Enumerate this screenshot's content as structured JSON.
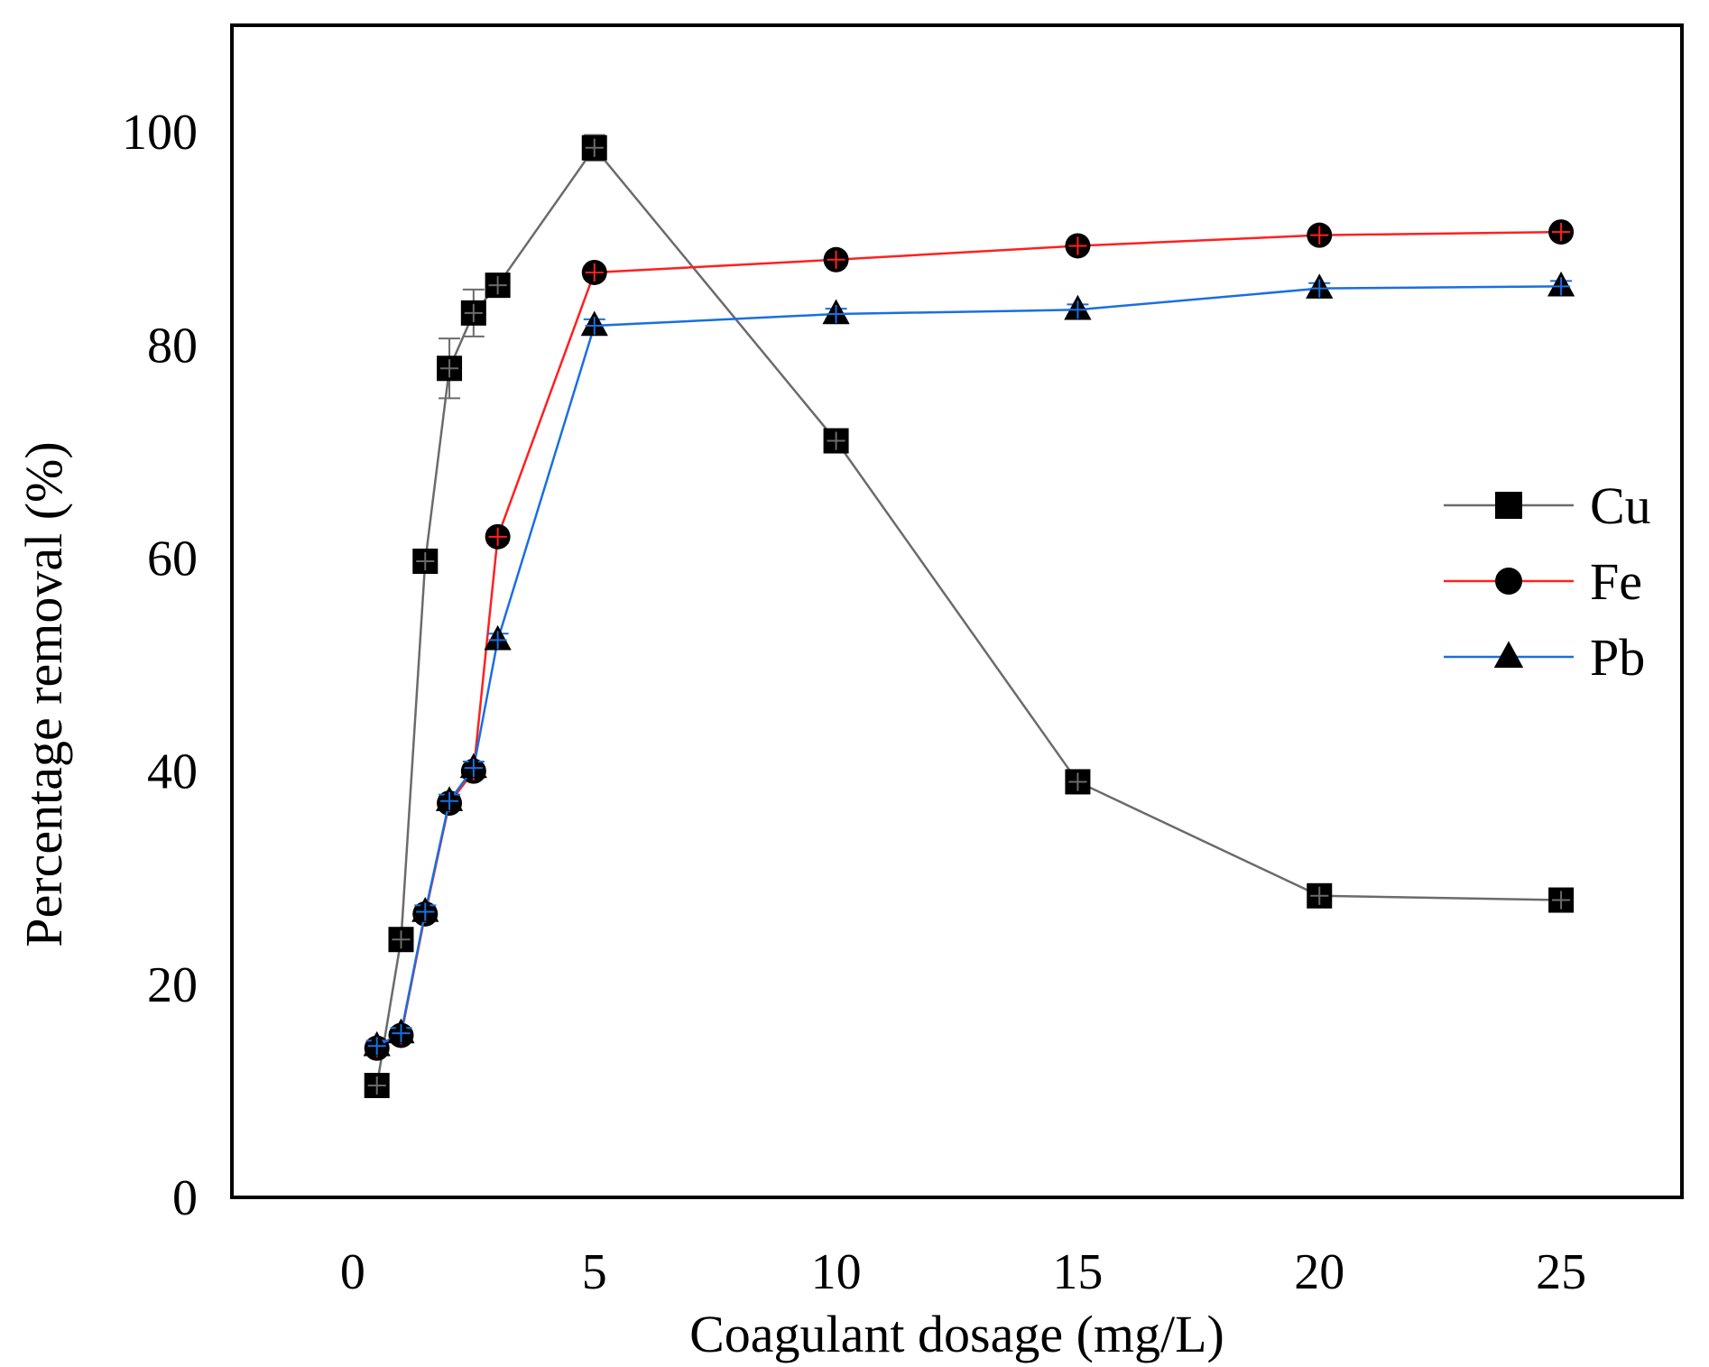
{
  "chart_data": {
    "type": "line",
    "title": "",
    "xlabel": "Coagulant dosage (mg/L)",
    "ylabel": "Percentage removal (%)",
    "xlim": [
      -2.5,
      27.5
    ],
    "ylim": [
      0,
      110
    ],
    "xticks": [
      0,
      5,
      10,
      15,
      20,
      25
    ],
    "yticks": [
      0,
      20,
      40,
      60,
      80,
      100
    ],
    "grid": false,
    "legend_position": "right",
    "x": [
      0.5,
      1,
      1.5,
      2,
      2.5,
      3,
      5,
      10,
      15,
      20,
      25
    ],
    "series": [
      {
        "name": "Cu",
        "marker": "square",
        "color": "#6b6b6b",
        "values": [
          10.5,
          24.2,
          59.7,
          77.8,
          83.0,
          85.6,
          98.5,
          71.0,
          39.0,
          28.3,
          27.9
        ],
        "error": [
          0.5,
          0.6,
          1.0,
          2.8,
          2.2,
          0.8,
          1.2,
          0.6,
          0.6,
          0.5,
          0.5
        ]
      },
      {
        "name": "Fe",
        "marker": "circle",
        "color": "#ff2020",
        "values": [
          14.0,
          15.2,
          26.6,
          37.0,
          40.0,
          62.0,
          86.8,
          88.0,
          89.3,
          90.3,
          90.6
        ],
        "error": [
          0.5,
          0.5,
          0.6,
          0.6,
          0.6,
          0.6,
          0.6,
          0.5,
          0.5,
          0.5,
          0.5
        ]
      },
      {
        "name": "Pb",
        "marker": "triangle",
        "color": "#1a6fe0",
        "values": [
          14.2,
          15.4,
          26.8,
          37.2,
          40.3,
          52.3,
          81.8,
          82.9,
          83.3,
          85.3,
          85.5
        ],
        "error": [
          0.5,
          0.5,
          0.6,
          0.6,
          0.6,
          0.6,
          0.6,
          0.5,
          0.5,
          0.5,
          0.5
        ]
      }
    ]
  }
}
